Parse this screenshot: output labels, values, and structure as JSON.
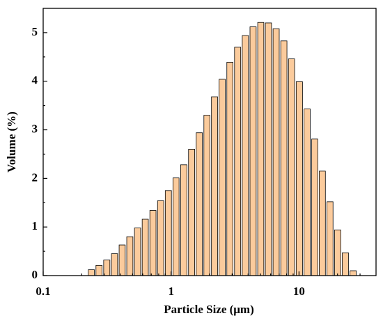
{
  "chart_data": {
    "type": "histogram",
    "xlabel": "Particle Size (μm)",
    "ylabel": "Volume (%)",
    "xscale": "log",
    "xlim": [
      0.1,
      40
    ],
    "ylim": [
      0,
      5.5
    ],
    "xticks": [
      0.1,
      1,
      10
    ],
    "yticks": [
      0,
      1,
      2,
      3,
      4,
      5
    ],
    "color": "#fbcb9c",
    "edgecolor": "#000000",
    "bins": [
      0.222,
      0.255,
      0.293,
      0.337,
      0.387,
      0.444,
      0.51,
      0.586,
      0.673,
      0.773,
      0.888,
      1.02,
      1.17,
      1.35,
      1.55,
      1.78,
      2.04,
      2.34,
      2.69,
      3.09,
      3.55,
      4.08,
      4.69,
      5.38,
      6.18,
      7.1,
      8.16,
      9.37,
      10.8,
      12.4,
      14.2,
      16.3,
      18.7,
      21.5,
      24.7,
      28.4
    ],
    "values": [
      0.12,
      0.21,
      0.32,
      0.45,
      0.63,
      0.8,
      0.98,
      1.16,
      1.34,
      1.54,
      1.75,
      2.01,
      2.28,
      2.6,
      2.94,
      3.3,
      3.68,
      4.04,
      4.39,
      4.7,
      4.94,
      5.12,
      5.21,
      5.2,
      5.08,
      4.83,
      4.46,
      3.99,
      3.43,
      2.81,
      2.15,
      1.52,
      0.94,
      0.47,
      0.1
    ]
  }
}
